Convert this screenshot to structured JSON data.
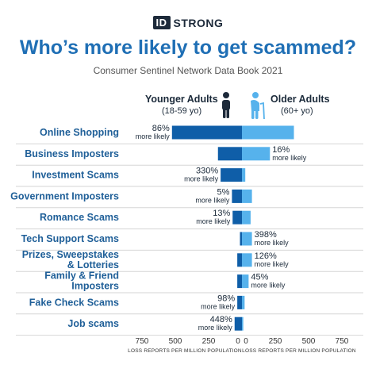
{
  "brand": {
    "box": "ID",
    "name": "STRONG"
  },
  "title": "Who’s more likely to get scammed?",
  "subtitle": "Consumer Sentinel Network Data Book 2021",
  "groups": {
    "younger": {
      "label": "Younger Adults",
      "range": "(18-59 yo)"
    },
    "older": {
      "label": "Older Adults",
      "range": "(60+ yo)"
    }
  },
  "colors": {
    "younger": "#0f5ea8",
    "older": "#56b2ec",
    "dark": "#1d2a3a",
    "accent": "#1f6fb5"
  },
  "icons": [
    "person-icon",
    "elderly-person-with-cane-icon"
  ],
  "chart_data": {
    "type": "bar",
    "orientation": "horizontal-diverging",
    "title": "Who’s more likely to get scammed?",
    "subtitle": "Consumer Sentinel Network Data Book 2021",
    "xlabel_left": "LOSS REPORTS PER MILLION POPULATION",
    "xlabel_right": "LOSS REPORTS PER MILLION POPULATION",
    "xlim": [
      0,
      750
    ],
    "ticks": [
      750,
      500,
      250,
      0,
      250,
      500,
      750
    ],
    "categories": [
      [
        "Online Shopping"
      ],
      [
        "Business Imposters"
      ],
      [
        "Investment Scams"
      ],
      [
        "Government Imposters"
      ],
      [
        "Romance Scams"
      ],
      [
        "Tech Support Scams"
      ],
      [
        "Prizes, Sweepstakes",
        "& Lotteries"
      ],
      [
        "Family & Friend",
        "Imposters"
      ],
      [
        "Fake Check Scams"
      ],
      [
        "Job scams"
      ]
    ],
    "series": [
      {
        "name": "Younger Adults",
        "values": [
          525,
          180,
          160,
          75,
          70,
          15,
          35,
          35,
          35,
          55
        ]
      },
      {
        "name": "Older Adults",
        "values": [
          390,
          210,
          25,
          75,
          65,
          75,
          75,
          50,
          20,
          10
        ]
      }
    ],
    "annotations": [
      {
        "side": "left",
        "pct": "86%",
        "note": "more likely"
      },
      {
        "side": "right",
        "pct": "16%",
        "note": "more likely"
      },
      {
        "side": "left",
        "pct": "330%",
        "note": "more likely"
      },
      {
        "side": "left",
        "pct": "5%",
        "note": "more likely"
      },
      {
        "side": "left",
        "pct": "13%",
        "note": "more likely"
      },
      {
        "side": "right",
        "pct": "398%",
        "note": "more likely"
      },
      {
        "side": "right",
        "pct": "126%",
        "note": "more likely"
      },
      {
        "side": "right",
        "pct": "45%",
        "note": "more likely"
      },
      {
        "side": "left",
        "pct": "98%",
        "note": "more likely"
      },
      {
        "side": "left",
        "pct": "448%",
        "note": "more likely"
      }
    ]
  }
}
